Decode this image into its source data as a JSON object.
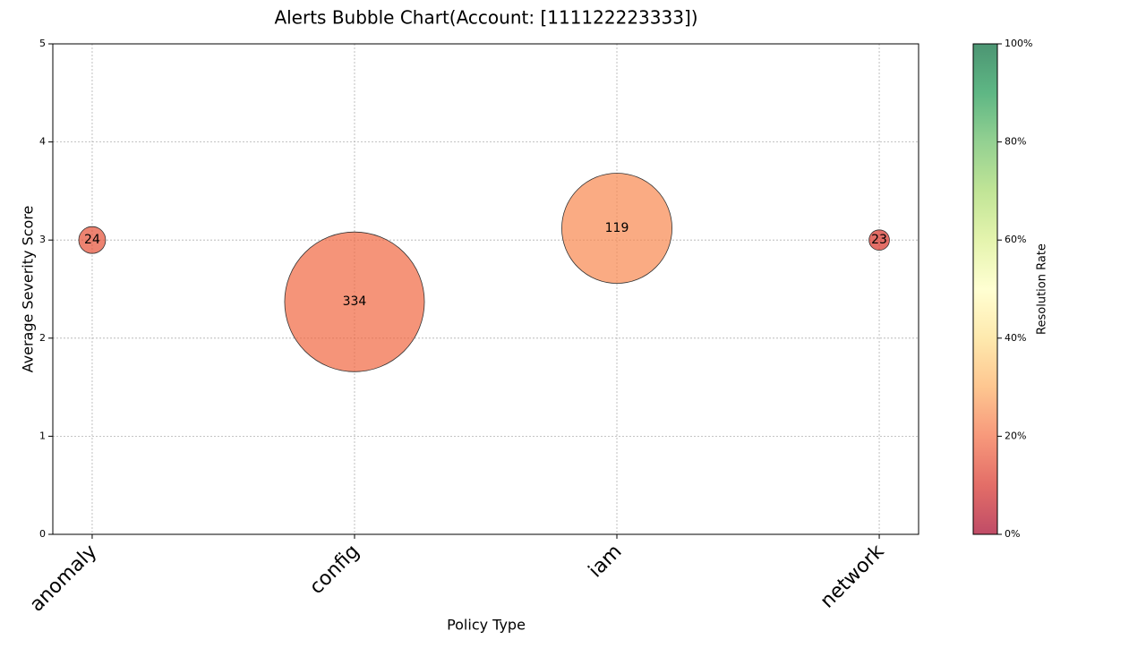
{
  "chart_data": {
    "type": "bubble",
    "title": "Alerts Bubble Chart(Account: [111122223333])",
    "x_label": "Policy Type",
    "y_label": "Average Severity Score",
    "categories": [
      "anomaly",
      "config",
      "iam",
      "network"
    ],
    "values": [
      3,
      2.37,
      3.12,
      3
    ],
    "sizes": [
      24,
      334,
      119,
      23
    ],
    "resolution_rates": [
      15,
      19,
      24,
      10
    ],
    "ylim": [
      0,
      5
    ],
    "yticks": [
      0,
      1,
      2,
      3,
      4,
      5
    ],
    "grid": true,
    "colorbar": {
      "label": "Resolution Rate",
      "lim": [
        0,
        100
      ],
      "ticks": [
        {
          "value": 0,
          "label": "0%"
        },
        {
          "value": 20,
          "label": "20%"
        },
        {
          "value": 40,
          "label": "40%"
        },
        {
          "value": 60,
          "label": "60%"
        },
        {
          "value": 80,
          "label": "80%"
        },
        {
          "value": 100,
          "label": "100%"
        }
      ],
      "colormap": [
        "#a50026",
        "#d73027",
        "#f46d43",
        "#fdae61",
        "#fee08b",
        "#ffffbf",
        "#d9ef8b",
        "#a6d96a",
        "#66bd63",
        "#1a9850",
        "#006837"
      ],
      "alpha": 0.7
    }
  }
}
